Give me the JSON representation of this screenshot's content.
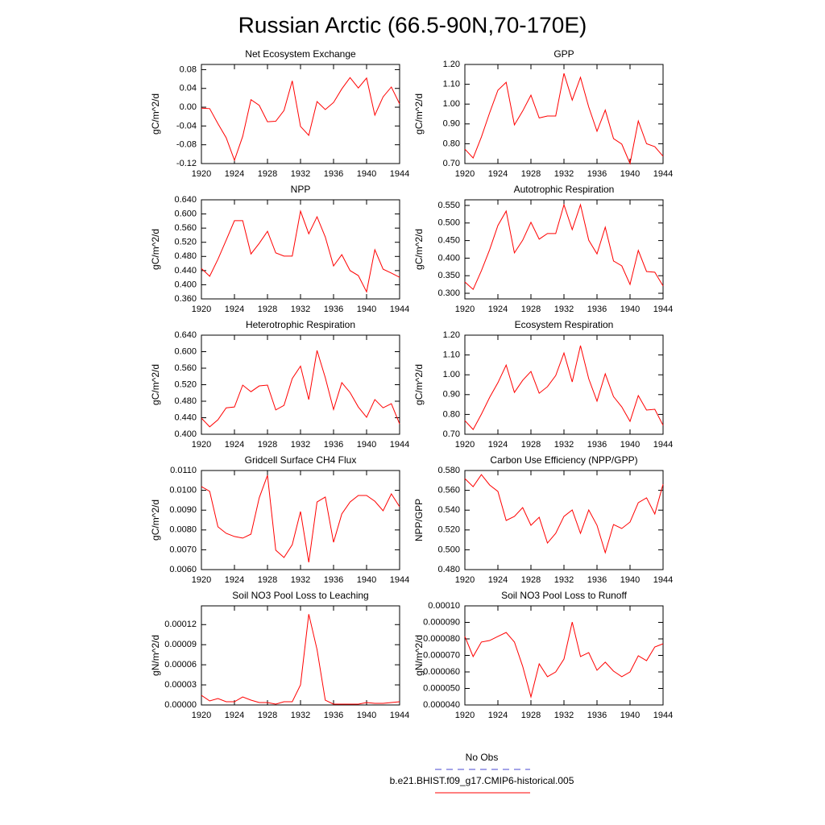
{
  "title": "Russian Arctic (66.5-90N,70-170E)",
  "legend": [
    {
      "name": "No Obs",
      "color": "#4a4ad0",
      "dash": true
    },
    {
      "name": "b.e21.BHIST.f09_g17.CMIP6-historical.005",
      "color": "#ff0000",
      "dash": false
    }
  ],
  "chart_data": [
    {
      "type": "line",
      "title": "Net Ecosystem Exchange",
      "y_label": "gC/m^2/d",
      "color": "#ff0000",
      "x": [
        1920,
        1921,
        1922,
        1923,
        1924,
        1925,
        1926,
        1927,
        1928,
        1929,
        1930,
        1931,
        1932,
        1933,
        1934,
        1935,
        1936,
        1937,
        1938,
        1939,
        1940,
        1941,
        1942,
        1943,
        1944
      ],
      "values": [
        -0.002,
        -0.003,
        -0.035,
        -0.065,
        -0.113,
        -0.062,
        0.016,
        0.004,
        -0.031,
        -0.03,
        -0.007,
        0.056,
        -0.041,
        -0.06,
        0.012,
        -0.005,
        0.01,
        0.039,
        0.063,
        0.041,
        0.062,
        -0.017,
        0.022,
        0.043,
        0.007
      ],
      "xlim": [
        1920,
        1944
      ],
      "xticks": [
        1920,
        1924,
        1928,
        1932,
        1936,
        1940,
        1944
      ],
      "ylim": [
        -0.12,
        0.091
      ],
      "yticks": [
        -0.12,
        -0.08,
        -0.04,
        {
          "value": 0,
          "label": "0.00"
        },
        0.04,
        0.08
      ]
    },
    {
      "type": "line",
      "title": "GPP",
      "y_label": "gC/m^2/d",
      "color": "#ff0000",
      "x": [
        1920,
        1921,
        1922,
        1923,
        1924,
        1925,
        1926,
        1927,
        1928,
        1929,
        1930,
        1931,
        1932,
        1933,
        1934,
        1935,
        1936,
        1937,
        1938,
        1939,
        1940,
        1941,
        1942,
        1943,
        1944
      ],
      "values": [
        0.773,
        0.728,
        0.834,
        0.956,
        1.07,
        1.11,
        0.895,
        0.965,
        1.045,
        0.93,
        0.94,
        0.94,
        1.155,
        1.02,
        1.135,
        0.985,
        0.863,
        0.97,
        0.826,
        0.798,
        0.7,
        0.915,
        0.8,
        0.785,
        0.737
      ],
      "xlim": [
        1920,
        1944
      ],
      "xticks": [
        1920,
        1924,
        1928,
        1932,
        1936,
        1940,
        1944
      ],
      "ylim": [
        0.7,
        1.2
      ],
      "yticks": [
        {
          "value": 0.7,
          "label": "0.70"
        },
        {
          "value": 0.8,
          "label": "0.80"
        },
        {
          "value": 0.9,
          "label": "0.90"
        },
        {
          "value": 1,
          "label": "1.00"
        },
        {
          "value": 1.1,
          "label": "1.10"
        },
        {
          "value": 1.2,
          "label": "1.20"
        }
      ]
    },
    {
      "type": "line",
      "title": "NPP",
      "y_label": "gC/m^2/d",
      "color": "#ff0000",
      "x": [
        1920,
        1921,
        1922,
        1923,
        1924,
        1925,
        1926,
        1927,
        1928,
        1929,
        1930,
        1931,
        1932,
        1933,
        1934,
        1935,
        1936,
        1937,
        1938,
        1939,
        1940,
        1941,
        1942,
        1943,
        1944
      ],
      "values": [
        0.446,
        0.424,
        0.472,
        0.526,
        0.581,
        0.581,
        0.487,
        0.517,
        0.551,
        0.49,
        0.481,
        0.481,
        0.608,
        0.544,
        0.592,
        0.535,
        0.453,
        0.485,
        0.44,
        0.426,
        0.38,
        0.499,
        0.444,
        0.433,
        0.421
      ],
      "xlim": [
        1920,
        1944
      ],
      "xticks": [
        1920,
        1924,
        1928,
        1932,
        1936,
        1940,
        1944
      ],
      "ylim": [
        0.36,
        0.64
      ],
      "yticks": [
        {
          "value": 0.36,
          "label": "0.360"
        },
        {
          "value": 0.4,
          "label": "0.400"
        },
        {
          "value": 0.44,
          "label": "0.440"
        },
        {
          "value": 0.48,
          "label": "0.480"
        },
        {
          "value": 0.52,
          "label": "0.520"
        },
        {
          "value": 0.56,
          "label": "0.560"
        },
        {
          "value": 0.6,
          "label": "0.600"
        },
        {
          "value": 0.64,
          "label": "0.640"
        }
      ]
    },
    {
      "type": "line",
      "title": "Autotrophic Respiration",
      "y_label": "gC/m^2/d",
      "color": "#ff0000",
      "x": [
        1920,
        1921,
        1922,
        1923,
        1924,
        1925,
        1926,
        1927,
        1928,
        1929,
        1930,
        1931,
        1932,
        1933,
        1934,
        1935,
        1936,
        1937,
        1938,
        1939,
        1940,
        1941,
        1942,
        1943,
        1944
      ],
      "values": [
        0.332,
        0.311,
        0.364,
        0.424,
        0.493,
        0.534,
        0.415,
        0.451,
        0.502,
        0.454,
        0.47,
        0.47,
        0.552,
        0.481,
        0.552,
        0.451,
        0.412,
        0.488,
        0.392,
        0.378,
        0.325,
        0.422,
        0.362,
        0.36,
        0.321
      ],
      "xlim": [
        1920,
        1944
      ],
      "xticks": [
        1920,
        1924,
        1928,
        1932,
        1936,
        1940,
        1944
      ],
      "ylim": [
        0.284,
        0.566
      ],
      "yticks": [
        {
          "value": 0.3,
          "label": "0.300"
        },
        {
          "value": 0.35,
          "label": "0.350"
        },
        {
          "value": 0.4,
          "label": "0.400"
        },
        {
          "value": 0.45,
          "label": "0.450"
        },
        {
          "value": 0.5,
          "label": "0.500"
        },
        {
          "value": 0.55,
          "label": "0.550"
        }
      ]
    },
    {
      "type": "line",
      "title": "Heterotrophic Respiration",
      "y_label": "gC/m^2/d",
      "color": "#ff0000",
      "x": [
        1920,
        1921,
        1922,
        1923,
        1924,
        1925,
        1926,
        1927,
        1928,
        1929,
        1930,
        1931,
        1932,
        1933,
        1934,
        1935,
        1936,
        1937,
        1938,
        1939,
        1940,
        1941,
        1942,
        1943,
        1944
      ],
      "values": [
        0.439,
        0.418,
        0.435,
        0.464,
        0.466,
        0.519,
        0.503,
        0.517,
        0.519,
        0.459,
        0.47,
        0.535,
        0.565,
        0.484,
        0.603,
        0.537,
        0.46,
        0.525,
        0.501,
        0.466,
        0.441,
        0.484,
        0.464,
        0.474,
        0.425
      ],
      "xlim": [
        1920,
        1944
      ],
      "xticks": [
        1920,
        1924,
        1928,
        1932,
        1936,
        1940,
        1944
      ],
      "ylim": [
        0.4,
        0.64
      ],
      "yticks": [
        {
          "value": 0.4,
          "label": "0.400"
        },
        {
          "value": 0.44,
          "label": "0.440"
        },
        {
          "value": 0.48,
          "label": "0.480"
        },
        {
          "value": 0.52,
          "label": "0.520"
        },
        {
          "value": 0.56,
          "label": "0.560"
        },
        {
          "value": 0.6,
          "label": "0.600"
        },
        {
          "value": 0.64,
          "label": "0.640"
        }
      ]
    },
    {
      "type": "line",
      "title": "Ecosystem Respiration",
      "y_label": "gC/m^2/d",
      "color": "#ff0000",
      "x": [
        1920,
        1921,
        1922,
        1923,
        1924,
        1925,
        1926,
        1927,
        1928,
        1929,
        1930,
        1931,
        1932,
        1933,
        1934,
        1935,
        1936,
        1937,
        1938,
        1939,
        1940,
        1941,
        1942,
        1943,
        1944
      ],
      "values": [
        0.769,
        0.724,
        0.801,
        0.886,
        0.96,
        1.049,
        0.911,
        0.972,
        1.017,
        0.907,
        0.94,
        0.996,
        1.11,
        0.964,
        1.147,
        0.98,
        0.867,
        1.005,
        0.89,
        0.838,
        0.765,
        0.895,
        0.822,
        0.826,
        0.745
      ],
      "xlim": [
        1920,
        1944
      ],
      "xticks": [
        1920,
        1924,
        1928,
        1932,
        1936,
        1940,
        1944
      ],
      "ylim": [
        0.7,
        1.2
      ],
      "yticks": [
        {
          "value": 0.7,
          "label": "0.70"
        },
        {
          "value": 0.8,
          "label": "0.80"
        },
        {
          "value": 0.9,
          "label": "0.90"
        },
        {
          "value": 1,
          "label": "1.00"
        },
        {
          "value": 1.1,
          "label": "1.10"
        },
        {
          "value": 1.2,
          "label": "1.20"
        }
      ]
    },
    {
      "type": "line",
      "title": "Gridcell Surface CH4 Flux",
      "y_label": "gC/m^2/d",
      "color": "#ff0000",
      "x": [
        1920,
        1921,
        1922,
        1923,
        1924,
        1925,
        1926,
        1927,
        1928,
        1929,
        1930,
        1931,
        1932,
        1933,
        1934,
        1935,
        1936,
        1937,
        1938,
        1939,
        1940,
        1941,
        1942,
        1943,
        1944
      ],
      "values": [
        0.01019,
        0.00995,
        0.00816,
        0.00783,
        0.00767,
        0.00759,
        0.00779,
        0.00962,
        0.01076,
        0.00698,
        0.00661,
        0.00726,
        0.00893,
        0.00637,
        0.00941,
        0.00966,
        0.00738,
        0.00881,
        0.00941,
        0.00974,
        0.00974,
        0.00945,
        0.00897,
        0.00982,
        0.00917
      ],
      "xlim": [
        1920,
        1944
      ],
      "xticks": [
        1920,
        1924,
        1928,
        1932,
        1936,
        1940,
        1944
      ],
      "ylim": [
        0.006,
        0.011
      ],
      "yticks": [
        {
          "value": 0.006,
          "label": "0.0060"
        },
        {
          "value": 0.007,
          "label": "0.0070"
        },
        {
          "value": 0.008,
          "label": "0.0080"
        },
        {
          "value": 0.009,
          "label": "0.0090"
        },
        {
          "value": 0.01,
          "label": "0.0100"
        },
        {
          "value": 0.011,
          "label": "0.0110"
        }
      ]
    },
    {
      "type": "line",
      "title": "Carbon Use Efficiency (NPP/GPP)",
      "y_label": "NPP/GPP",
      "color": "#ff0000",
      "x": [
        1920,
        1921,
        1922,
        1923,
        1924,
        1925,
        1926,
        1927,
        1928,
        1929,
        1930,
        1931,
        1932,
        1933,
        1934,
        1935,
        1936,
        1937,
        1938,
        1939,
        1940,
        1941,
        1942,
        1943,
        1944
      ],
      "values": [
        0.5719,
        0.5637,
        0.5759,
        0.5654,
        0.5589,
        0.5296,
        0.5337,
        0.5426,
        0.5247,
        0.5328,
        0.5068,
        0.5166,
        0.5337,
        0.5402,
        0.5166,
        0.5402,
        0.5247,
        0.4971,
        0.5255,
        0.5215,
        0.528,
        0.5475,
        0.5524,
        0.5361,
        0.5662
      ],
      "xlim": [
        1920,
        1944
      ],
      "xticks": [
        1920,
        1924,
        1928,
        1932,
        1936,
        1940,
        1944
      ],
      "ylim": [
        0.48,
        0.58
      ],
      "yticks": [
        {
          "value": 0.48,
          "label": "0.480"
        },
        {
          "value": 0.5,
          "label": "0.500"
        },
        {
          "value": 0.52,
          "label": "0.520"
        },
        {
          "value": 0.54,
          "label": "0.540"
        },
        {
          "value": 0.56,
          "label": "0.560"
        },
        {
          "value": 0.58,
          "label": "0.580"
        }
      ]
    },
    {
      "type": "line",
      "title": "Soil NO3 Pool Loss to Leaching",
      "y_label": "gN/m^2/d",
      "color": "#ff0000",
      "x": [
        1920,
        1921,
        1922,
        1923,
        1924,
        1925,
        1926,
        1927,
        1928,
        1929,
        1930,
        1931,
        1932,
        1933,
        1934,
        1935,
        1936,
        1937,
        1938,
        1939,
        1940,
        1941,
        1942,
        1943,
        1944
      ],
      "values": [
        1.44e-05,
        6e-06,
        9.6e-06,
        4.8e-06,
        4.8e-06,
        1.2e-05,
        7.2e-06,
        3.6e-06,
        3.6e-06,
        1.2e-06,
        4.8e-06,
        4.8e-06,
        3e-05,
        0.0001356,
        8.28e-05,
        7.2e-06,
        1.2e-06,
        1.2e-06,
        1.2e-06,
        1.2e-06,
        3.6e-06,
        2.4e-06,
        2.4e-06,
        3.6e-06,
        4.8e-06
      ],
      "xlim": [
        1920,
        1944
      ],
      "xticks": [
        1920,
        1924,
        1928,
        1932,
        1936,
        1940,
        1944
      ],
      "ylim": [
        0,
        0.000148
      ],
      "yticks": [
        {
          "value": 0,
          "label": "0.00000"
        },
        3e-05,
        6e-05,
        9e-05,
        0.00012
      ]
    },
    {
      "type": "line",
      "title": "Soil NO3 Pool Loss to Runoff",
      "y_label": "gN/m^2/d",
      "color": "#ff0000",
      "x": [
        1920,
        1921,
        1922,
        1923,
        1924,
        1925,
        1926,
        1927,
        1928,
        1929,
        1930,
        1931,
        1932,
        1933,
        1934,
        1935,
        1936,
        1937,
        1938,
        1939,
        1940,
        1941,
        1942,
        1943,
        1944
      ],
      "values": [
        8.15e-05,
        6.93e-05,
        7.81e-05,
        7.9e-05,
        8.15e-05,
        8.39e-05,
        7.81e-05,
        6.34e-05,
        4.49e-05,
        6.49e-05,
        5.71e-05,
        6e-05,
        6.78e-05,
        9.02e-05,
        6.93e-05,
        7.17e-05,
        6.1e-05,
        6.59e-05,
        6.05e-05,
        5.71e-05,
        6e-05,
        6.98e-05,
        6.68e-05,
        7.51e-05,
        7.7e-05
      ],
      "xlim": [
        1920,
        1944
      ],
      "xticks": [
        1920,
        1924,
        1928,
        1932,
        1936,
        1940,
        1944
      ],
      "ylim": [
        4e-05,
        0.0001
      ],
      "yticks": [
        {
          "value": 4e-05,
          "label": "0.000040"
        },
        {
          "value": 5e-05,
          "label": "0.000050"
        },
        {
          "value": 6e-05,
          "label": "0.000060"
        },
        {
          "value": 7e-05,
          "label": "0.000070"
        },
        {
          "value": 8e-05,
          "label": "0.000080"
        },
        {
          "value": 9e-05,
          "label": "0.000090"
        },
        {
          "value": 0.0001,
          "label": "0.00010"
        }
      ]
    }
  ]
}
